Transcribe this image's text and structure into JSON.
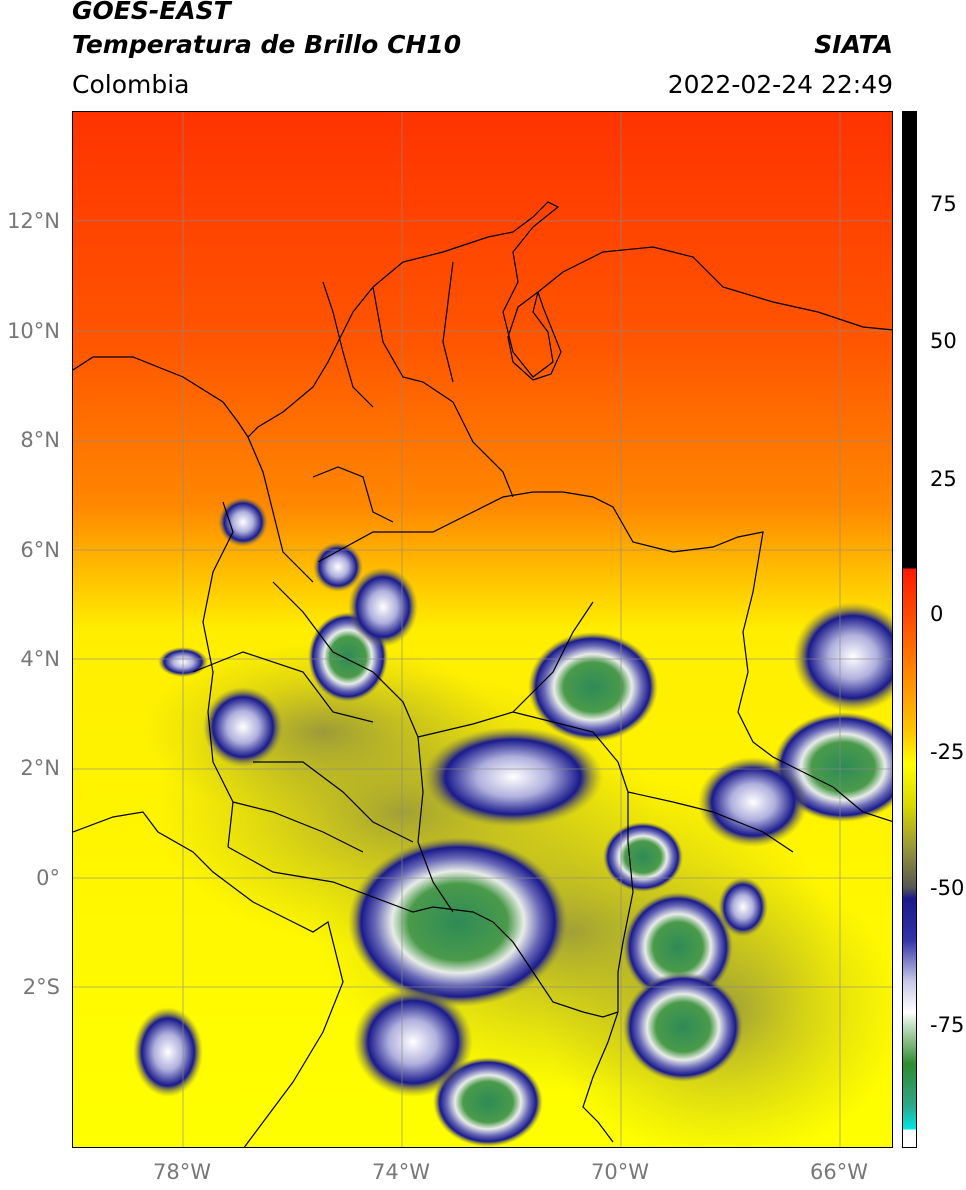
{
  "header": {
    "satellite": "GOES-EAST",
    "product": "Temperatura de Brillo CH10",
    "agency": "SIATA",
    "region": "Colombia",
    "datetime": "2022-02-24 22:49"
  },
  "map": {
    "lat_labels": [
      "12°N",
      "10°N",
      "8°N",
      "6°N",
      "4°N",
      "2°N",
      "0°",
      "2°S"
    ],
    "lon_labels": [
      "78°W",
      "74°W",
      "70°W",
      "66°W"
    ]
  },
  "colorbar": {
    "ticks": [
      "75",
      "50",
      "25",
      "0",
      "-25",
      "-50",
      "-75"
    ],
    "colors": [
      "#000000",
      "#ff1a00",
      "#ff7a00",
      "#ffff00",
      "#555555",
      "#1a1a8c",
      "#ffffff",
      "#2e8b2e",
      "#00e6e6"
    ]
  }
}
